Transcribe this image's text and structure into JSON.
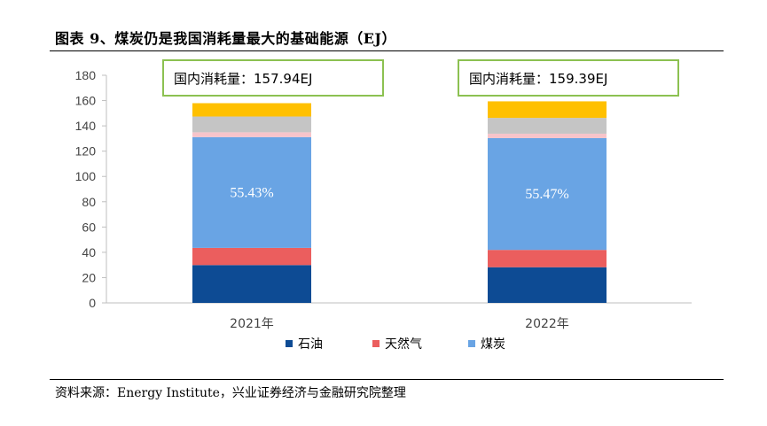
{
  "title": "图表 9、煤炭仍是我国消耗量最大的基础能源（EJ）",
  "source": "资料来源：Energy Institute，兴业证券经济与金融研究院整理",
  "chart_data": {
    "type": "bar",
    "stacked": true,
    "categories": [
      "2021年",
      "2022年"
    ],
    "ylim": [
      0,
      180
    ],
    "yticks": [
      0,
      20,
      40,
      60,
      80,
      100,
      120,
      140,
      160,
      180
    ],
    "grid": false,
    "legend": "bottom",
    "series": [
      {
        "name": "石油",
        "values": [
          29.9,
          28.2
        ],
        "color": "#0d4b94"
      },
      {
        "name": "天然气",
        "values": [
          13.6,
          13.7
        ],
        "color": "#eb5e5e"
      },
      {
        "name": "煤炭",
        "values": [
          87.6,
          88.4
        ],
        "color": "#69a4e4"
      },
      {
        "name": "",
        "values": [
          3.8,
          3.5
        ],
        "color": "#f7c4ca"
      },
      {
        "name": "",
        "values": [
          12.5,
          12.5
        ],
        "color": "#c5c5c5"
      },
      {
        "name": "",
        "values": [
          10.54,
          13.09
        ],
        "color": "#ffc000"
      }
    ],
    "annotations": [
      {
        "category": "2021年",
        "share_label": "55.43%",
        "total_label": "国内消耗量：157.94EJ"
      },
      {
        "category": "2022年",
        "share_label": "55.47%",
        "total_label": "国内消耗量：159.39EJ"
      }
    ]
  }
}
